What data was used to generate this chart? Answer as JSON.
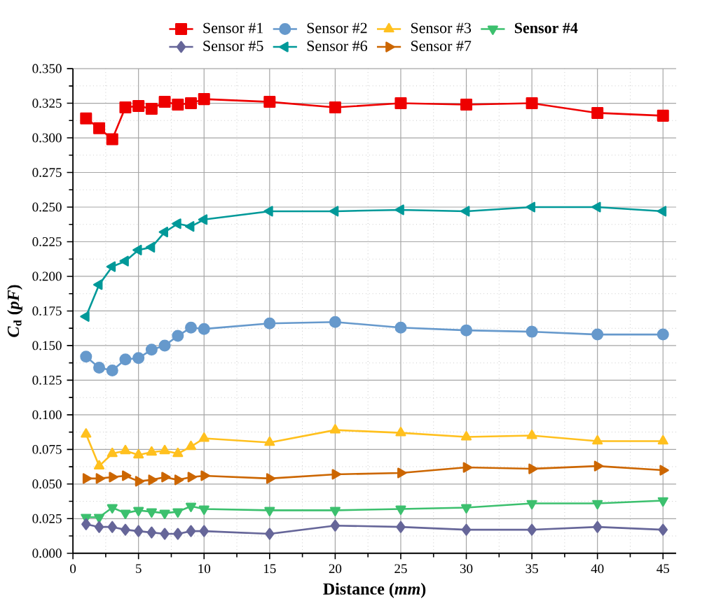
{
  "chart_data": {
    "type": "line",
    "xlabel": "Distance (*mm*)",
    "ylabel": "*C*$_{d}$ (*pF*)",
    "x": [
      1,
      2,
      3,
      4,
      5,
      6,
      7,
      8,
      9,
      10,
      15,
      20,
      25,
      30,
      35,
      40,
      45
    ],
    "xlim": [
      0,
      46
    ],
    "xticks": [
      0,
      5,
      10,
      15,
      20,
      25,
      30,
      35,
      40,
      45
    ],
    "ylim": [
      0,
      0.35
    ],
    "yticks": [
      {
        "value": 0,
        "label": "0.000"
      },
      {
        "value": 0.025,
        "label": "0.025"
      },
      {
        "value": 0.05,
        "label": "0.050"
      },
      {
        "value": 0.075,
        "label": "0.075"
      },
      {
        "value": 0.1,
        "label": "0.100"
      },
      {
        "value": 0.125,
        "label": "0.125"
      },
      {
        "value": 0.15,
        "label": "0.150"
      },
      {
        "value": 0.175,
        "label": "0.175"
      },
      {
        "value": 0.2,
        "label": "0.200"
      },
      {
        "value": 0.225,
        "label": "0.225"
      },
      {
        "value": 0.25,
        "label": "0.250"
      },
      {
        "value": 0.275,
        "label": "0.275"
      },
      {
        "value": 0.3,
        "label": "0.300"
      },
      {
        "value": 0.325,
        "label": "0.325"
      },
      {
        "value": 0.35,
        "label": "0.350"
      }
    ],
    "grid": true,
    "legend": "top",
    "line_style": "solid",
    "series": [
      {
        "name": "Sensor #1",
        "color": "#ee0000",
        "marker": "square",
        "values": [
          0.314,
          0.307,
          0.299,
          0.322,
          0.323,
          0.321,
          0.326,
          0.324,
          0.325,
          0.328,
          0.326,
          0.322,
          0.325,
          0.324,
          0.325,
          0.318,
          0.316
        ]
      },
      {
        "name": "Sensor #2",
        "color": "#6699cc",
        "marker": "circle",
        "values": [
          0.142,
          0.134,
          0.132,
          0.14,
          0.141,
          0.147,
          0.15,
          0.157,
          0.163,
          0.162,
          0.166,
          0.167,
          0.163,
          0.161,
          0.16,
          0.158,
          0.158
        ]
      },
      {
        "name": "Sensor #3",
        "color": "#ffc01e",
        "marker": "triangle",
        "values": [
          0.086,
          0.063,
          0.072,
          0.074,
          0.071,
          0.073,
          0.074,
          0.072,
          0.077,
          0.083,
          0.08,
          0.089,
          0.087,
          0.084,
          0.085,
          0.081,
          0.081
        ]
      },
      {
        "name": "**Sensor #4**",
        "color": "#3cc06e",
        "marker": "triangle-down",
        "values": [
          0.026,
          0.026,
          0.033,
          0.029,
          0.031,
          0.03,
          0.029,
          0.03,
          0.034,
          0.032,
          0.031,
          0.031,
          0.032,
          0.033,
          0.036,
          0.036,
          0.038
        ]
      },
      {
        "name": "Sensor #5",
        "color": "#666699",
        "marker": "diamond",
        "values": [
          0.021,
          0.019,
          0.019,
          0.017,
          0.016,
          0.015,
          0.014,
          0.014,
          0.016,
          0.016,
          0.014,
          0.02,
          0.019,
          0.017,
          0.017,
          0.019,
          0.017
        ]
      },
      {
        "name": "Sensor #6",
        "color": "#009999",
        "marker": "triangle-left",
        "values": [
          0.171,
          0.194,
          0.207,
          0.211,
          0.219,
          0.221,
          0.232,
          0.238,
          0.236,
          0.241,
          0.247,
          0.247,
          0.248,
          0.247,
          0.25,
          0.25,
          0.247
        ]
      },
      {
        "name": "Sensor #7",
        "color": "#cc6600",
        "marker": "triangle-right",
        "values": [
          0.054,
          0.054,
          0.055,
          0.056,
          0.052,
          0.053,
          0.055,
          0.053,
          0.055,
          0.056,
          0.054,
          0.057,
          0.058,
          0.062,
          0.061,
          0.063,
          0.06
        ]
      }
    ]
  }
}
